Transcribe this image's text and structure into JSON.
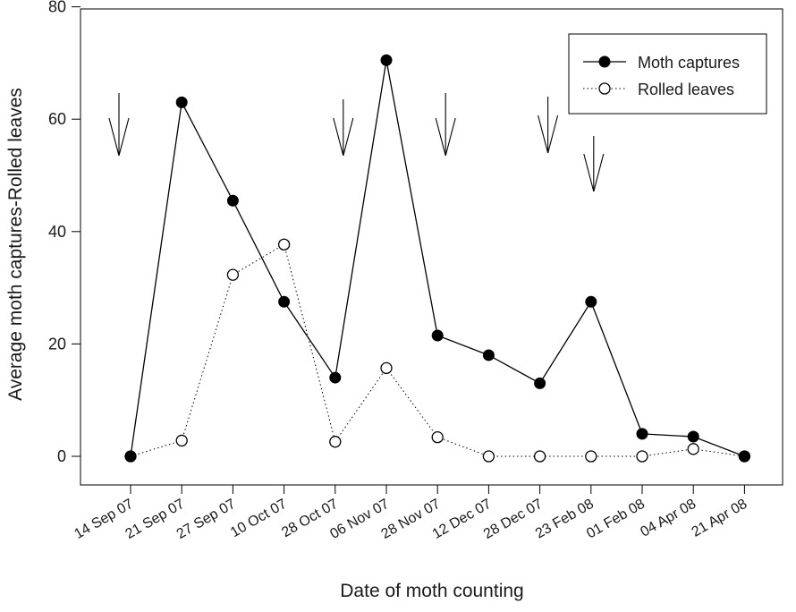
{
  "chart_data": {
    "type": "line",
    "title": "",
    "xlabel": "Date of moth counting",
    "ylabel": "Average moth captures-Rolled leaves",
    "categories": [
      "14 Sep 07",
      "21 Sep 07",
      "27 Sep 07",
      "10 Oct 07",
      "28 Oct 07",
      "06 Nov 07",
      "28 Nov 07",
      "12 Dec 07",
      "28 Dec 07",
      "23 Feb 08",
      "01 Feb 08",
      "04 Apr 08",
      "21 Apr 08"
    ],
    "ylim": [
      0,
      80
    ],
    "yticks": [
      0,
      20,
      40,
      60,
      80
    ],
    "grid": false,
    "legend_position": "top-right",
    "series": [
      {
        "name": "Moth captures",
        "marker": "filled-circle",
        "line": "solid",
        "color": "#000000",
        "values": [
          0,
          63,
          45.5,
          27.5,
          14,
          70.5,
          21.5,
          18,
          13,
          27.5,
          4,
          3.5,
          0
        ]
      },
      {
        "name": "Rolled leaves",
        "marker": "open-circle",
        "line": "dotted",
        "color": "#000000",
        "values": [
          0,
          2.8,
          32.3,
          37.7,
          2.6,
          15.7,
          3.4,
          0,
          0,
          0,
          0,
          1.3,
          0
        ]
      }
    ],
    "annotations": {
      "type": "downward-arrow",
      "categories": [
        "14 Sep 07",
        "28 Oct 07",
        "28 Nov 07",
        "28 Dec 07",
        "23 Feb 08"
      ]
    }
  }
}
